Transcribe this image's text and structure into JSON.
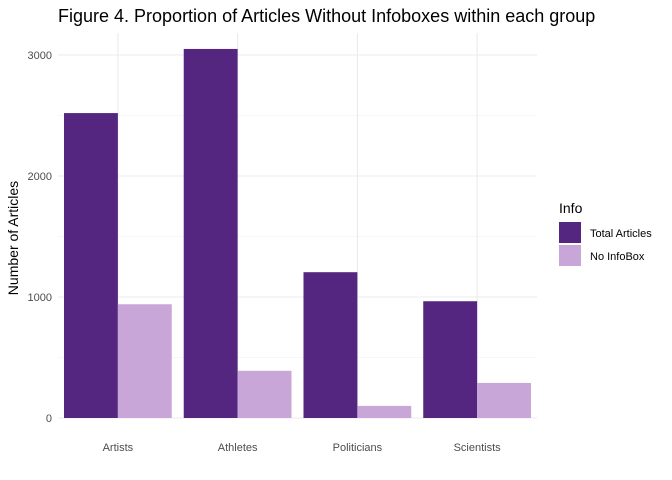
{
  "chart_data": {
    "type": "bar",
    "title": "Figure 4. Proportion of Articles Without Infoboxes within each group",
    "xlabel": "",
    "ylabel": "Number of Articles",
    "categories": [
      "Artists",
      "Athletes",
      "Politicians",
      "Scientists"
    ],
    "series": [
      {
        "name": "Total Articles",
        "color": "#54267f",
        "values": [
          2520,
          3050,
          1205,
          965
        ]
      },
      {
        "name": "No InfoBox",
        "color": "#c9a6d8",
        "values": [
          940,
          390,
          100,
          290
        ]
      }
    ],
    "ylim": [
      0,
      3200
    ],
    "y_ticks": [
      0,
      1000,
      2000,
      3000
    ],
    "y_tick_labels": [
      "0",
      "1000",
      "2000",
      "3000"
    ],
    "grid": true,
    "legend": {
      "title": "Info",
      "position": "right"
    }
  }
}
